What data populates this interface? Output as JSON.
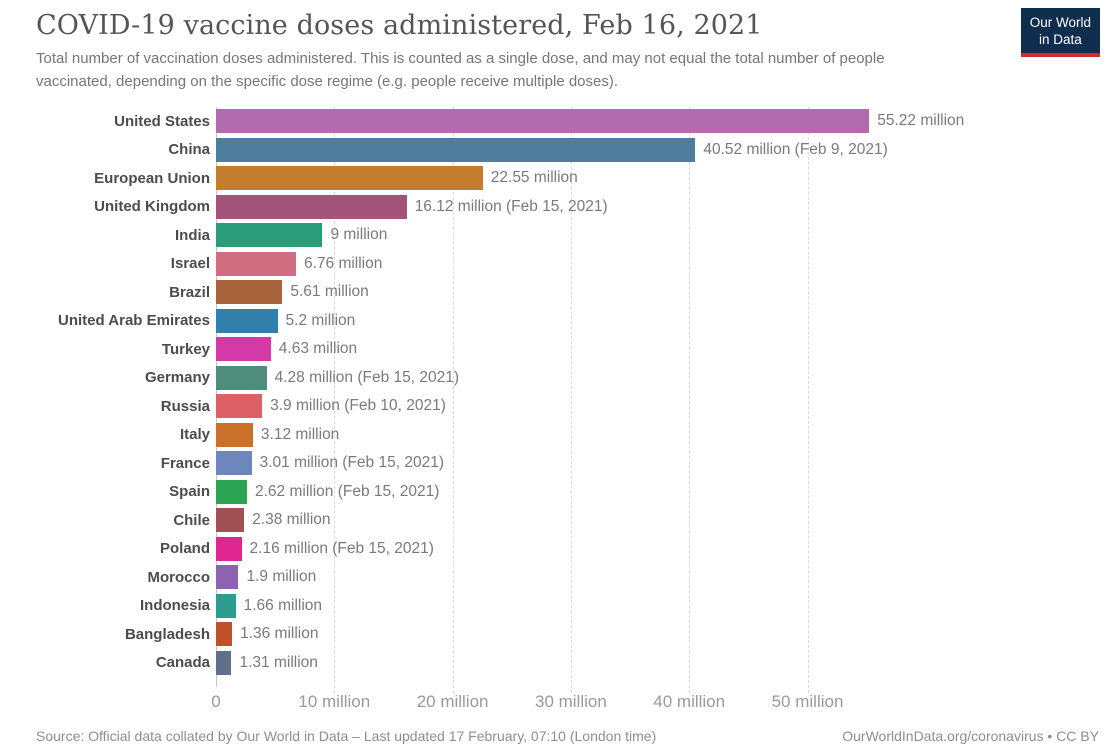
{
  "header": {
    "title": "COVID-19 vaccine doses administered, Feb 16, 2021",
    "subtitle": "Total number of vaccination doses administered. This is counted as a single dose, and may not equal the total number of people vaccinated, depending on the specific dose regime (e.g. people receive multiple doses).",
    "logo": {
      "line1": "Our World",
      "line2": "in Data",
      "bg_color": "#0f2d4d",
      "accent_color": "#cc2f27"
    }
  },
  "chart_data": {
    "type": "bar",
    "orientation": "horizontal",
    "title": "COVID-19 vaccine doses administered, Feb 16, 2021",
    "unit": "doses (millions)",
    "grid": "vertical-dashed",
    "legend": "none",
    "xlim_millions": [
      0,
      75
    ],
    "categories": [
      "United States",
      "China",
      "European Union",
      "United Kingdom",
      "India",
      "Israel",
      "Brazil",
      "United Arab Emirates",
      "Turkey",
      "Germany",
      "Russia",
      "Italy",
      "France",
      "Spain",
      "Chile",
      "Poland",
      "Morocco",
      "Indonesia",
      "Bangladesh",
      "Canada"
    ],
    "values_millions": [
      55.22,
      40.52,
      22.55,
      16.12,
      9,
      6.76,
      5.61,
      5.2,
      4.63,
      4.28,
      3.9,
      3.12,
      3.01,
      2.62,
      2.38,
      2.16,
      1.9,
      1.66,
      1.36,
      1.31
    ],
    "value_labels": [
      "55.22 million",
      "40.52 million (Feb 9, 2021)",
      "22.55 million",
      "16.12 million (Feb 15, 2021)",
      "9 million",
      "6.76 million",
      "5.61 million",
      "5.2 million",
      "4.63 million",
      "4.28 million (Feb 15, 2021)",
      "3.9 million (Feb 10, 2021)",
      "3.12 million",
      "3.01 million (Feb 15, 2021)",
      "2.62 million (Feb 15, 2021)",
      "2.38 million",
      "2.16 million (Feb 15, 2021)",
      "1.9 million",
      "1.66 million",
      "1.36 million",
      "1.31 million"
    ],
    "bar_colors": [
      "#b26bad",
      "#4f7d9d",
      "#c47d2d",
      "#a4547a",
      "#2a9c78",
      "#d26e82",
      "#a9633c",
      "#317fad",
      "#d33aa6",
      "#4e8c7c",
      "#dd6066",
      "#ca7028",
      "#6d87be",
      "#2aa353",
      "#a05052",
      "#e0268f",
      "#8d62ae",
      "#2b9c8e",
      "#bf5229",
      "#60708a"
    ],
    "x_ticks": [
      {
        "value": 0,
        "label": "0"
      },
      {
        "value": 10,
        "label": "10 million"
      },
      {
        "value": 20,
        "label": "20 million"
      },
      {
        "value": 30,
        "label": "30 million"
      },
      {
        "value": 40,
        "label": "40 million"
      },
      {
        "value": 50,
        "label": "50 million"
      }
    ]
  },
  "footer": {
    "source": "Source: Official data collated by Our World in Data – Last updated 17 February, 07:10 (London time)",
    "link": "OurWorldInData.org/coronavirus • CC BY"
  }
}
